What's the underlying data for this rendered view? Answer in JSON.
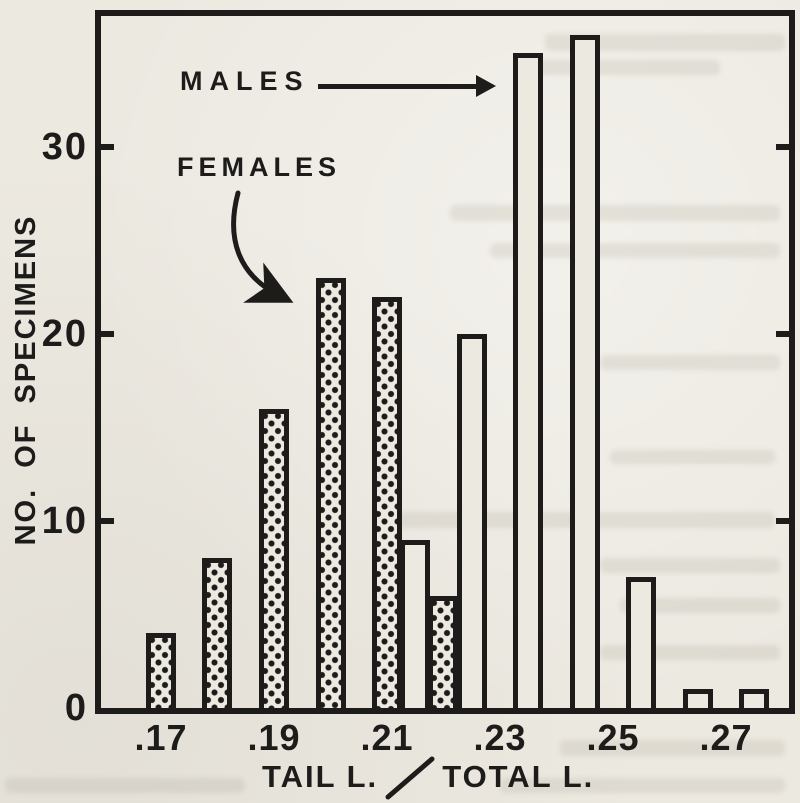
{
  "figure": {
    "y_axis_title": "NO. OF SPECIMENS",
    "x_axis_title_left": "TAIL L.",
    "x_axis_title_right": "TOTAL L.",
    "colors": {
      "ink": "#1d1c1a",
      "paper": "#ece9e1"
    }
  },
  "chart_data": {
    "type": "bar",
    "title": "",
    "xlabel": "TAIL L. / TOTAL L.",
    "ylabel": "NO. OF SPECIMENS",
    "x_tick_labels": [
      ".17",
      ".19",
      ".21",
      ".23",
      ".25",
      ".27"
    ],
    "x_tick_values": [
      0.17,
      0.19,
      0.21,
      0.23,
      0.25,
      0.27
    ],
    "y_tick_labels": [
      "0",
      "10",
      "20",
      "30"
    ],
    "y_ticks": [
      0,
      10,
      20,
      30
    ],
    "ylim": [
      0,
      37
    ],
    "xlim": [
      0.159,
      0.282
    ],
    "grid": false,
    "legend_position": "inside-top-left-with-arrows",
    "series": [
      {
        "name": "FEMALES",
        "style": "stippled",
        "x": [
          0.17,
          0.18,
          0.19,
          0.2,
          0.21,
          0.22
        ],
        "values": [
          4,
          8,
          16,
          23,
          22,
          6
        ]
      },
      {
        "name": "MALES",
        "style": "open",
        "x": [
          0.215,
          0.225,
          0.235,
          0.245,
          0.255,
          0.265,
          0.275
        ],
        "values": [
          9,
          20,
          35,
          36,
          7,
          1,
          1
        ]
      }
    ]
  }
}
